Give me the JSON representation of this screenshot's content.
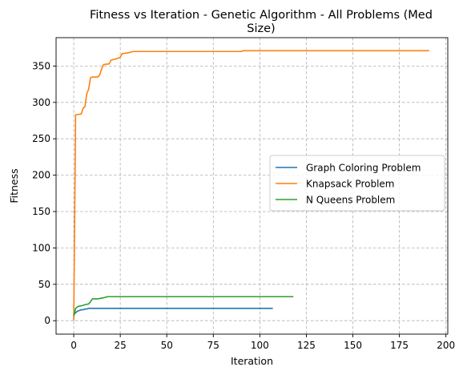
{
  "chart_data": {
    "type": "line",
    "title_lines": [
      "Fitness vs Iteration - Genetic Algorithm - All Problems (Med",
      "Size)"
    ],
    "xlabel": "Iteration",
    "ylabel": "Fitness",
    "xlim": [
      -9.5,
      201
    ],
    "ylim": [
      -18.5,
      389
    ],
    "xticks": [
      0,
      25,
      50,
      75,
      100,
      125,
      150,
      175,
      200
    ],
    "yticks": [
      0,
      50,
      100,
      150,
      200,
      250,
      300,
      350
    ],
    "grid": true,
    "legend_position": "center-right",
    "series": [
      {
        "name": "Graph Coloring Problem",
        "color": "#1f77b4",
        "points": [
          [
            0,
            8
          ],
          [
            1,
            11
          ],
          [
            2,
            13
          ],
          [
            3,
            14
          ],
          [
            4,
            15
          ],
          [
            5,
            15
          ],
          [
            6,
            16
          ],
          [
            7,
            16
          ],
          [
            8,
            17
          ],
          [
            9,
            17
          ],
          [
            10,
            17
          ],
          [
            20,
            17
          ],
          [
            50,
            17
          ],
          [
            80,
            17
          ],
          [
            107,
            17
          ]
        ]
      },
      {
        "name": "Knapsack Problem",
        "color": "#ff7f0e",
        "points": [
          [
            0,
            0
          ],
          [
            1,
            283
          ],
          [
            4,
            284
          ],
          [
            5,
            292
          ],
          [
            6,
            294
          ],
          [
            7,
            312
          ],
          [
            8,
            318
          ],
          [
            9,
            334
          ],
          [
            10,
            335
          ],
          [
            13,
            335
          ],
          [
            14,
            338
          ],
          [
            15,
            346
          ],
          [
            16,
            352
          ],
          [
            19,
            353
          ],
          [
            20,
            358
          ],
          [
            23,
            360
          ],
          [
            25,
            362
          ],
          [
            26,
            367
          ],
          [
            29,
            368
          ],
          [
            32,
            370
          ],
          [
            60,
            370
          ],
          [
            90,
            370
          ],
          [
            91,
            371
          ],
          [
            191,
            371
          ]
        ]
      },
      {
        "name": "N Queens Problem",
        "color": "#2ca02c",
        "points": [
          [
            0,
            6
          ],
          [
            1,
            17
          ],
          [
            2,
            19
          ],
          [
            3,
            20
          ],
          [
            5,
            21
          ],
          [
            6,
            22
          ],
          [
            8,
            23
          ],
          [
            9,
            26
          ],
          [
            10,
            30
          ],
          [
            13,
            30
          ],
          [
            15,
            31
          ],
          [
            17,
            32
          ],
          [
            18,
            33
          ],
          [
            40,
            33
          ],
          [
            80,
            33
          ],
          [
            118,
            33
          ]
        ]
      }
    ]
  }
}
